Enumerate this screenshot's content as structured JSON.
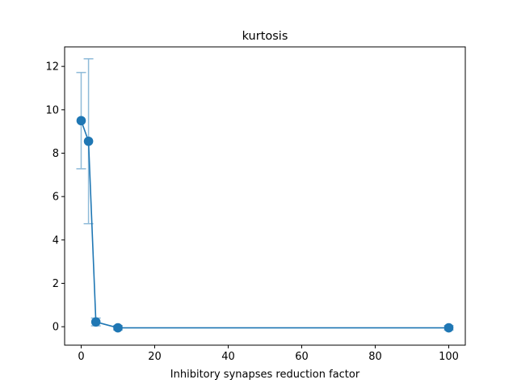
{
  "chart_data": {
    "type": "line",
    "title": "kurtosis",
    "xlabel": "Inhibitory synapses reduction factor",
    "ylabel": "",
    "xlim": [
      -4.5,
      104.5
    ],
    "ylim": [
      -0.85,
      12.9
    ],
    "xticks": [
      0,
      20,
      40,
      60,
      80,
      100
    ],
    "xtick_labels": [
      "0",
      "20",
      "40",
      "60",
      "80",
      "100"
    ],
    "yticks": [
      0,
      2,
      4,
      6,
      8,
      10,
      12
    ],
    "ytick_labels": [
      "0",
      "2",
      "4",
      "6",
      "8",
      "10",
      "12"
    ],
    "grid": false,
    "legend": "none",
    "series": [
      {
        "color": "#1f77b4",
        "errorbar_color": "#8fbbd9",
        "marker": "circle",
        "x": [
          0,
          2,
          4,
          10,
          100
        ],
        "y": [
          9.5,
          8.55,
          0.22,
          -0.05,
          -0.05
        ],
        "yerr": [
          2.22,
          3.8,
          0.18,
          0.1,
          0.1
        ]
      }
    ]
  }
}
